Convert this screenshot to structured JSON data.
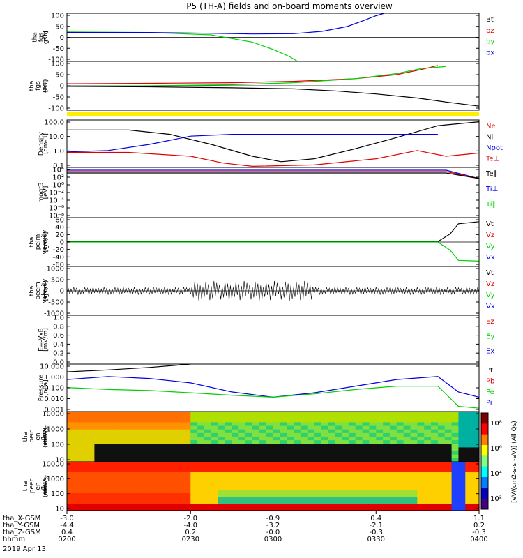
{
  "title": "P5 (TH-A) fields and on-board moments overview",
  "colors": {
    "black": "#000000",
    "red": "#e00000",
    "green": "#00d000",
    "blue": "#0000e0",
    "yellow": "#ffee00",
    "frame": "#000000"
  },
  "chart_data": [
    {
      "id": "fgs",
      "type": "line",
      "ylabel": [
        "tha",
        "fgs",
        "gsm",
        "[nT]"
      ],
      "ylim": [
        -100,
        100
      ],
      "yticks": [
        "100",
        "50",
        "0",
        "-50",
        "-100"
      ],
      "legend": [
        {
          "label": "Bt",
          "color": "black"
        },
        {
          "label": "bz",
          "color": "red"
        },
        {
          "label": "by",
          "color": "green"
        },
        {
          "label": "bx",
          "color": "blue"
        }
      ],
      "series": [
        {
          "name": "by",
          "color": "green",
          "x": [
            0,
            0.2,
            0.35,
            0.45,
            0.5,
            0.54,
            0.56
          ],
          "y": [
            22,
            20,
            10,
            -20,
            -50,
            -80,
            -100
          ]
        },
        {
          "name": "bx",
          "color": "blue",
          "x": [
            0,
            0.2,
            0.3,
            0.45,
            0.55,
            0.62,
            0.68,
            0.72,
            0.75,
            0.77
          ],
          "y": [
            20,
            20,
            18,
            14,
            15,
            25,
            45,
            70,
            90,
            100
          ]
        }
      ]
    },
    {
      "id": "fgs_m180",
      "type": "line",
      "ylabel": [
        "tha",
        "fgs",
        "gsm",
        "-180",
        "[nT]"
      ],
      "ylim": [
        -120,
        120
      ],
      "yticks": [
        "100",
        "50",
        "0",
        "-50",
        "-100"
      ],
      "series": [
        {
          "name": "",
          "color": "red",
          "x": [
            0,
            0.2,
            0.4,
            0.55,
            0.7,
            0.8,
            0.86,
            0.9
          ],
          "y": [
            10,
            12,
            15,
            22,
            35,
            55,
            80,
            100
          ]
        },
        {
          "name": "",
          "color": "green",
          "x": [
            0,
            0.2,
            0.4,
            0.55,
            0.7,
            0.8,
            0.86,
            0.92
          ],
          "y": [
            -2,
            0,
            5,
            15,
            35,
            60,
            85,
            95
          ]
        },
        {
          "name": "",
          "color": "black",
          "x": [
            0,
            0.2,
            0.4,
            0.55,
            0.65,
            0.75,
            0.85,
            0.92,
            1
          ],
          "y": [
            -3,
            -5,
            -10,
            -15,
            -25,
            -40,
            -60,
            -80,
            -100
          ]
        }
      ]
    },
    {
      "id": "density",
      "type": "line",
      "scale": "log",
      "ylabel": [
        "Density",
        "[cm-3]"
      ],
      "ylim": [
        0.1,
        200
      ],
      "yticks": [
        "100.0",
        "10.0",
        "1.0",
        "0.1"
      ],
      "legend": [
        {
          "label": "Ne",
          "color": "red"
        },
        {
          "label": "Ni",
          "color": "black"
        },
        {
          "label": "Npot",
          "color": "blue"
        },
        {
          "label": "Te⊥",
          "color": "red"
        }
      ],
      "series": [
        {
          "name": "Ni",
          "color": "black",
          "x": [
            0,
            0.15,
            0.25,
            0.35,
            0.45,
            0.52,
            0.6,
            0.7,
            0.8,
            0.9,
            1
          ],
          "y": [
            40,
            40,
            20,
            4,
            0.6,
            0.25,
            0.4,
            2,
            12,
            80,
            150
          ]
        },
        {
          "name": "Npot",
          "color": "blue",
          "x": [
            0,
            0.1,
            0.2,
            0.3,
            0.4,
            0.6,
            0.8,
            0.9
          ],
          "y": [
            1.2,
            1.5,
            4,
            15,
            20,
            20,
            20,
            20
          ]
        },
        {
          "name": "Ne",
          "color": "red",
          "x": [
            0,
            0.15,
            0.3,
            0.38,
            0.45,
            0.6,
            0.75,
            0.85,
            0.92,
            1
          ],
          "y": [
            1.1,
            1.1,
            0.6,
            0.2,
            0.12,
            0.15,
            0.4,
            1.5,
            0.6,
            1
          ]
        }
      ]
    },
    {
      "id": "temp",
      "type": "line",
      "scale": "log",
      "ylabel": [
        "moqt3",
        "[eV]"
      ],
      "yticks": [
        "10⁴",
        "10²",
        "10⁰",
        "10⁻²",
        "10⁻⁴",
        "10⁻⁶",
        "10⁻⁸"
      ],
      "legend": [
        {
          "label": "Te∥",
          "color": "black"
        },
        {
          "label": "Ti⊥",
          "color": "blue"
        },
        {
          "label": "Ti∥",
          "color": "green"
        }
      ]
    },
    {
      "id": "peim",
      "type": "line",
      "ylabel": [
        "tha",
        "peim",
        "velocity",
        "gsm",
        "[km/s]"
      ],
      "ylim": [
        -60,
        60
      ],
      "yticks": [
        "60",
        "40",
        "20",
        "0",
        "-20",
        "-40",
        "-60"
      ],
      "legend": [
        {
          "label": "Vt",
          "color": "black"
        },
        {
          "label": "Vz",
          "color": "red"
        },
        {
          "label": "Vy",
          "color": "green"
        },
        {
          "label": "Vx",
          "color": "blue"
        }
      ],
      "series": [
        {
          "name": "Vt",
          "color": "black",
          "x": [
            0,
            0.9,
            0.93,
            0.95,
            1
          ],
          "y": [
            1,
            1,
            20,
            45,
            50
          ]
        },
        {
          "name": "Vy",
          "color": "green",
          "x": [
            0,
            0.9,
            0.93,
            0.95,
            1
          ],
          "y": [
            0,
            0,
            -20,
            -45,
            -47
          ]
        }
      ]
    },
    {
      "id": "peem",
      "type": "line",
      "ylabel": [
        "tha",
        "peem",
        "velocity",
        "gsm",
        "[km/s]"
      ],
      "ylim": [
        -1000,
        1000
      ],
      "yticks": [
        "1000",
        "500",
        "0",
        "-500",
        "-1000"
      ],
      "legend": [
        {
          "label": "Vt",
          "color": "black"
        },
        {
          "label": "Vz",
          "color": "red"
        },
        {
          "label": "Vy",
          "color": "green"
        },
        {
          "label": "Vx",
          "color": "blue"
        }
      ]
    },
    {
      "id": "efield",
      "type": "line",
      "ylabel": [
        "E=-VxB",
        "[mV/m]"
      ],
      "ylim": [
        0,
        1
      ],
      "yticks": [
        "1.0",
        "0.8",
        "0.6",
        "0.4",
        "0.2",
        "0.0"
      ],
      "legend": [
        {
          "label": "Ez",
          "color": "red"
        },
        {
          "label": "Ey",
          "color": "green"
        },
        {
          "label": "Ex",
          "color": "blue"
        }
      ]
    },
    {
      "id": "pressure",
      "type": "line",
      "scale": "log",
      "ylabel": [
        "Pressure",
        "[nPa]"
      ],
      "ylim": [
        0.001,
        20
      ],
      "yticks": [
        "10.000",
        "1.000",
        "0.100",
        "0.010",
        "0.001"
      ],
      "legend": [
        {
          "label": "Pt",
          "color": "black"
        },
        {
          "label": "Pb",
          "color": "red"
        },
        {
          "label": "Pe",
          "color": "green"
        },
        {
          "label": "Pi",
          "color": "blue"
        }
      ],
      "series": [
        {
          "name": "Pt/Pb",
          "color": "black",
          "x": [
            0,
            0.1,
            0.2,
            0.3
          ],
          "y": [
            4,
            6,
            10,
            20
          ]
        },
        {
          "name": "Pi",
          "color": "blue",
          "x": [
            0,
            0.1,
            0.2,
            0.3,
            0.4,
            0.5,
            0.6,
            0.7,
            0.8,
            0.9,
            0.95,
            1
          ],
          "y": [
            0.8,
            1.5,
            1,
            0.4,
            0.06,
            0.02,
            0.05,
            0.2,
            0.8,
            1.5,
            0.06,
            0.02
          ]
        },
        {
          "name": "Pe",
          "color": "green",
          "x": [
            0,
            0.1,
            0.2,
            0.3,
            0.4,
            0.5,
            0.6,
            0.7,
            0.8,
            0.9,
            0.95,
            1
          ],
          "y": [
            0.15,
            0.1,
            0.08,
            0.05,
            0.03,
            0.02,
            0.04,
            0.1,
            0.2,
            0.2,
            0.003,
            0.002
          ]
        }
      ]
    },
    {
      "id": "peir_spec",
      "type": "heatmap",
      "ylabel": [
        "tha",
        "peir",
        "en",
        "eflux",
        "eV",
        "(cm²-s-",
        "sr-eV)"
      ],
      "yticks": [
        "10000",
        "1000",
        "100",
        "10"
      ]
    },
    {
      "id": "peer_spec",
      "type": "heatmap",
      "ylabel": [
        "tha",
        "peer",
        "en",
        "eflux",
        "eV",
        "(cm²-s-",
        "sr-eV)"
      ],
      "yticks": [
        "10000",
        "1000",
        "100",
        "10"
      ]
    }
  ],
  "colorbar": {
    "ticks": [
      "10⁸",
      "10⁶",
      "10⁴",
      "10²"
    ],
    "label": "[eV/(cm2-s-sr-eV)] (All Qs)"
  },
  "xaxis": {
    "rows": [
      {
        "label": "tha_X-GSM",
        "values": [
          "-3.0",
          "-2.0",
          "-0.9",
          "0.4",
          "1.1"
        ]
      },
      {
        "label": "tha_Y-GSM",
        "values": [
          "-4.4",
          "-4.0",
          "-3.2",
          "-2.1",
          "0.2"
        ]
      },
      {
        "label": "tha_Z-GSM",
        "values": [
          "0.4",
          "0.2",
          "-0.0",
          "-0.3",
          "-0.3"
        ]
      },
      {
        "label": "hhmm",
        "values": [
          "0200",
          "0230",
          "0300",
          "0330",
          "0400"
        ]
      }
    ],
    "date": "2019 Apr 13"
  }
}
